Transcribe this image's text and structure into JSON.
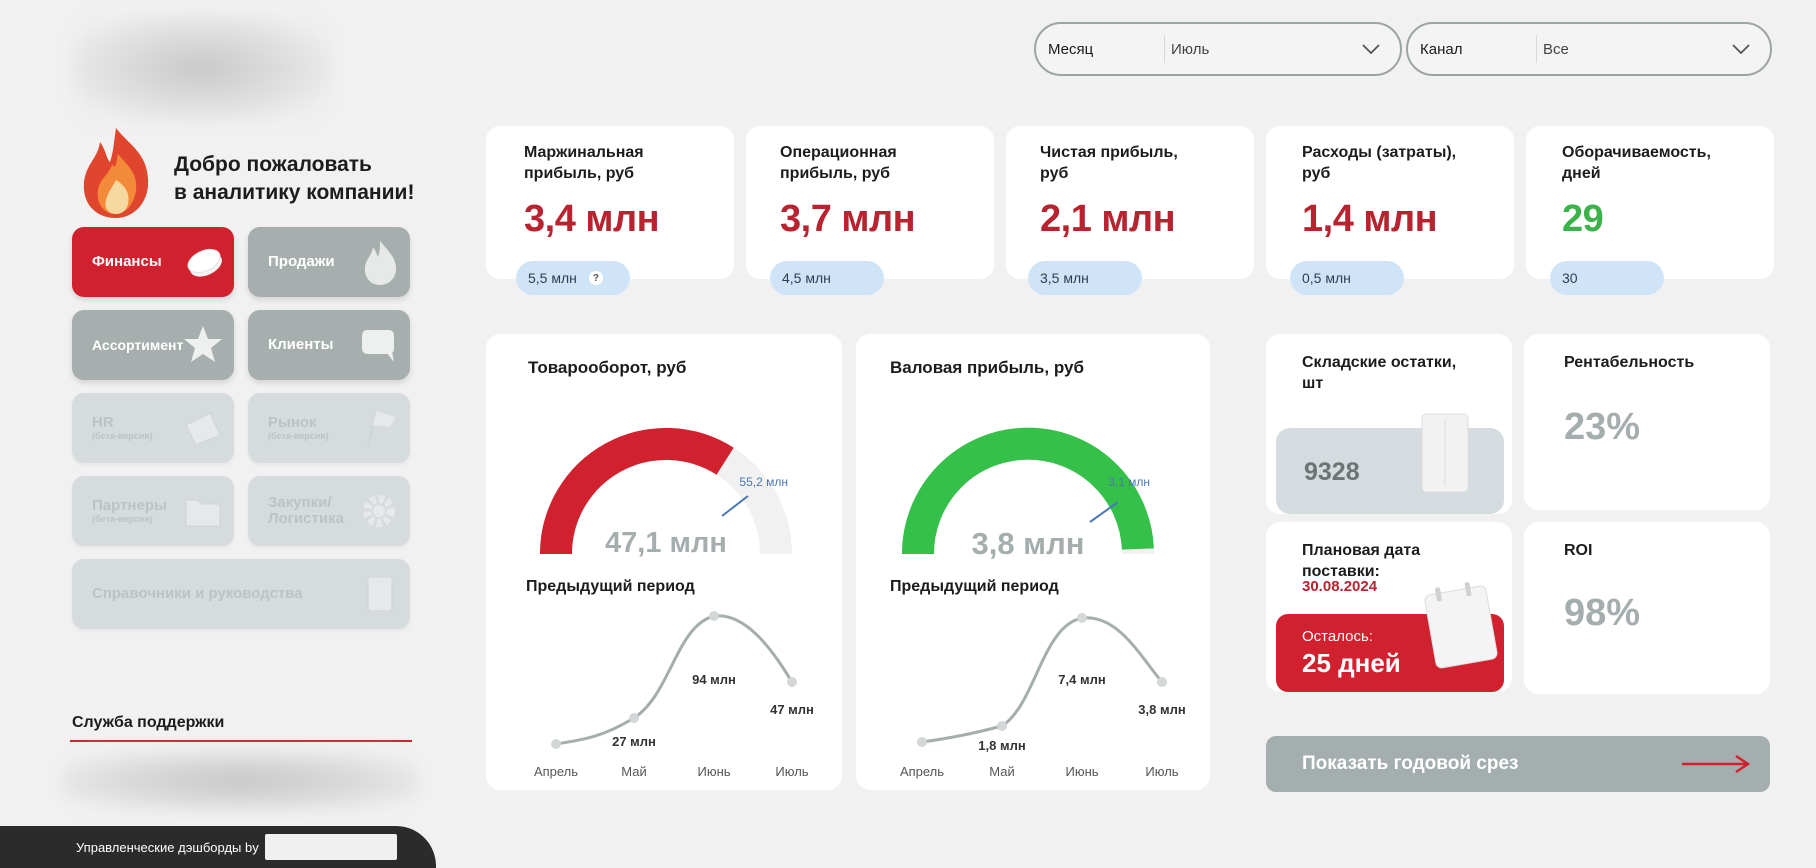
{
  "welcome": {
    "line1": "Добро пожаловать",
    "line2": "в аналитику компании!"
  },
  "nav": {
    "finance": "Финансы",
    "sales": "Продажи",
    "assortment": "Ассортимент",
    "clients": "Клиенты",
    "hr": "HR",
    "hr_sub": "(бета-версия)",
    "market": "Рынок",
    "market_sub": "(бета-версия)",
    "partners": "Партнеры",
    "partners_sub": "(бета-версия)",
    "logistics_line1": "Закупки/",
    "logistics_line2": "Логистика",
    "guides": "Справочники и руководства"
  },
  "support": {
    "title": "Служба поддержки"
  },
  "footer": {
    "text": "Управленческие дэшборды by"
  },
  "filters": {
    "month_label": "Месяц",
    "month_value": "Июль",
    "channel_label": "Канал",
    "channel_value": "Все"
  },
  "kpis": [
    {
      "title_line1": "Маржинальная",
      "title_line2": "прибыль, руб",
      "value": "3,4 млн",
      "prev": "5,5 млн",
      "help": "?"
    },
    {
      "title_line1": "Операционная",
      "title_line2": "прибыль, руб",
      "value": "3,7 млн",
      "prev": "4,5 млн"
    },
    {
      "title_line1": "Чистая прибыль,",
      "title_line2": "руб",
      "value": "2,1 млн",
      "prev": "3,5 млн"
    },
    {
      "title_line1": "Расходы (затраты),",
      "title_line2": "руб",
      "value": "1,4 млн",
      "prev": "0,5 млн"
    },
    {
      "title_line1": "Оборачиваемость,",
      "title_line2": "дней",
      "value": "29",
      "prev": "30"
    }
  ],
  "turnover": {
    "title": "Товарооборот, руб",
    "gauge_value": "47,1 млн",
    "gauge_target": "55,2 млн",
    "prev_title": "Предыдущий период",
    "months": [
      "Апрель",
      "Май",
      "Июнь",
      "Июль"
    ],
    "labels": [
      "",
      "27 млн",
      "94 млн",
      "47 млн"
    ]
  },
  "gross": {
    "title": "Валовая прибыль, руб",
    "gauge_value": "3,8 млн",
    "gauge_target": "3,1 млн",
    "prev_title": "Предыдущий период",
    "months": [
      "Апрель",
      "Май",
      "Июнь",
      "Июль"
    ],
    "labels": [
      "",
      "1,8 млн",
      "7,4 млн",
      "3,8 млн"
    ]
  },
  "stock": {
    "title_line1": "Складские остатки,",
    "title_line2": "шт",
    "value": "9328"
  },
  "profitability": {
    "title": "Рентабельность",
    "value": "23%"
  },
  "delivery": {
    "title_line1": "Плановая дата",
    "title_line2": "поставки:",
    "date": "30.08.2024",
    "remain_label": "Осталось:",
    "remain_value": "25 дней"
  },
  "roi": {
    "title": "ROI",
    "value": "98%"
  },
  "year_button": "Показать годовой срез",
  "colors": {
    "red": "#d1202e",
    "green": "#35c04a",
    "gray": "#a4aeae",
    "pill": "#cfe5f7"
  }
}
